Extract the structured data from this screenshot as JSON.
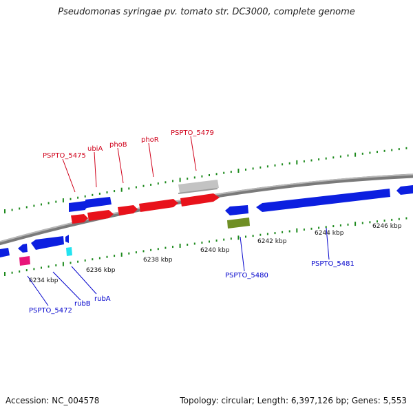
{
  "title": "Pseudomonas syringae pv. tomato str. DC3000, complete genome",
  "footer": {
    "accession": "Accession: NC_004578",
    "summary": "Topology: circular; Length: 6,397,126 bp; Genes: 5,553"
  },
  "colors": {
    "forward_gene": "#e8121b",
    "reverse_gene": "#0c1fe0",
    "forward_label": "#d0021b",
    "reverse_label": "#0000cc",
    "backbone": "#8a8a8a",
    "tick": "#1d8a1d",
    "grey_feature": "#c0c0c0",
    "olive_feature": "#6f8f25",
    "magenta_feature": "#e8157a",
    "cyan_feature": "#23e3f0"
  },
  "ticks": {
    "labels": [
      "6234 kbp",
      "6236 kbp",
      "6238 kbp",
      "6240 kbp",
      "6242 kbp",
      "6244 kbp",
      "6246 kbp"
    ]
  },
  "labels": {
    "top": [
      "PSPTO_5475",
      "ubiA",
      "phoB",
      "phoR",
      "PSPTO_5479"
    ],
    "bottom": [
      "PSPTO_5472",
      "rubB",
      "rubA",
      "PSPTO_5480",
      "PSPTO_5481"
    ]
  }
}
